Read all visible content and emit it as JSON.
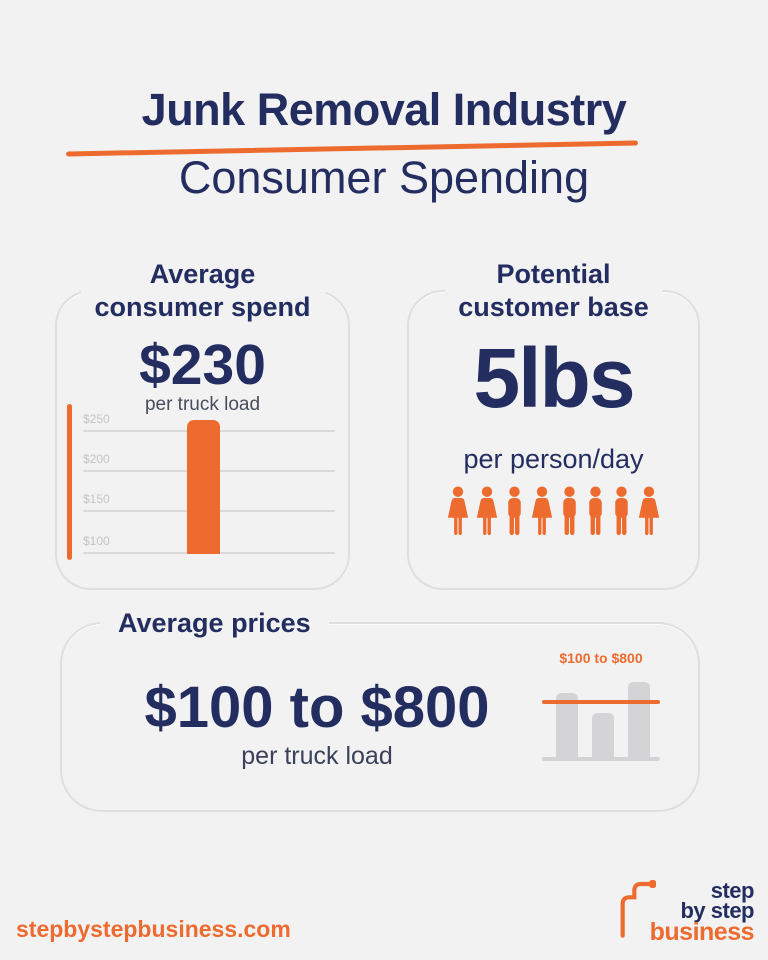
{
  "header": {
    "title": "Junk Removal Industry",
    "subtitle": "Consumer Spending"
  },
  "cards": {
    "spend": {
      "title_line1": "Average",
      "title_line2": "consumer spend",
      "value": "$230",
      "unit": "per truck load",
      "ticks": [
        "$250",
        "$200",
        "$150",
        "$100"
      ]
    },
    "base": {
      "title_line1": "Potential",
      "title_line2": "customer base",
      "value": "5lbs",
      "unit": "per person/day",
      "people": [
        "woman",
        "woman",
        "man",
        "woman",
        "man",
        "man",
        "man",
        "woman"
      ]
    },
    "prices": {
      "title": "Average prices",
      "value": "$100 to $800",
      "unit": "per truck load",
      "chart_label": "$100 to $800"
    }
  },
  "footer": {
    "url": "stepbystepbusiness.com",
    "logo_line1": "step",
    "logo_line2": "by step",
    "logo_line3": "business"
  },
  "colors": {
    "accent_orange": "#ED6B2E",
    "brand_navy": "#232D5F",
    "background": "#F2F2F3",
    "muted_gray": "#C3C3C6",
    "bar_gray": "#D4D4D6"
  },
  "chart_data": [
    {
      "type": "bar",
      "title": "Average consumer spend",
      "categories": [
        "Average consumer spend per truck load"
      ],
      "values": [
        230
      ],
      "ylabel": "",
      "xlabel": "",
      "yticks": [
        "$250",
        "$200",
        "$150",
        "$100"
      ],
      "ylim": [
        75,
        255
      ],
      "grid": true,
      "annotation": "$230 per truck load",
      "bar_color": "#ED6B2E"
    },
    {
      "type": "bar",
      "title": "Average prices",
      "categories": [
        "bar1",
        "bar2",
        "bar3"
      ],
      "values": [
        450,
        310,
        530
      ],
      "reference_line": {
        "label": "$100 to $800",
        "meaning": "price range $100 to $800 per truck load"
      },
      "annotation": "$100 to $800 per truck load",
      "bar_color": "#D4D4D6",
      "line_color": "#ED6B2E"
    }
  ]
}
